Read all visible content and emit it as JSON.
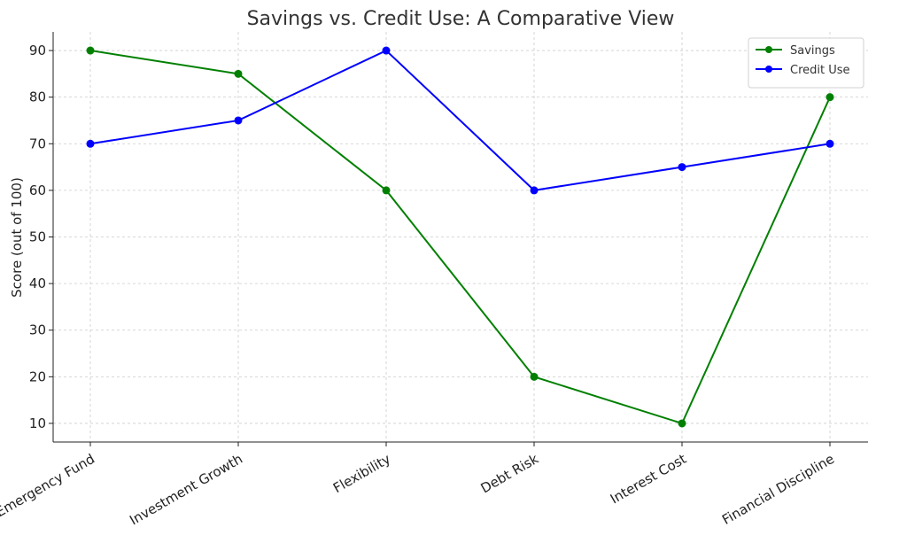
{
  "chart_data": {
    "type": "line",
    "title": "Savings vs. Credit Use: A Comparative View",
    "xlabel": "",
    "ylabel": "Score (out of 100)",
    "categories": [
      "Emergency Fund",
      "Investment Growth",
      "Flexibility",
      "Debt Risk",
      "Interest Cost",
      "Financial Discipline"
    ],
    "yticks": [
      10,
      20,
      30,
      40,
      50,
      60,
      70,
      80,
      90
    ],
    "ylim": [
      6,
      94
    ],
    "grid": true,
    "legend_position": "top-right",
    "series": [
      {
        "name": "Savings",
        "color": "#008000",
        "values": [
          90,
          85,
          60,
          20,
          10,
          80
        ]
      },
      {
        "name": "Credit Use",
        "color": "#0000ff",
        "values": [
          70,
          75,
          90,
          60,
          65,
          70
        ]
      }
    ]
  }
}
